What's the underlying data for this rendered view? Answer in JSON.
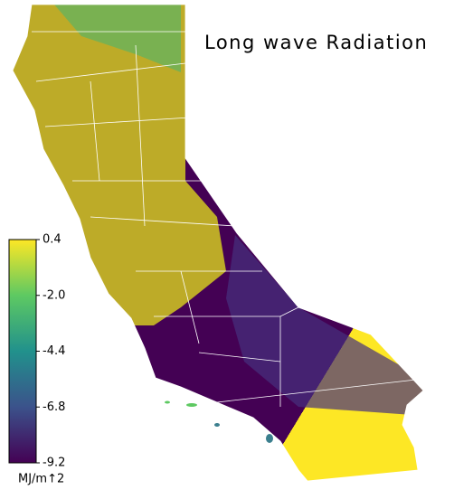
{
  "title": "Long wave Radiation",
  "colorbar": {
    "label": "MJ/m↑2",
    "lim": [
      -9.2,
      0.4
    ],
    "ticks": [
      0.4,
      {
        "value": -2,
        "label": "-2.0"
      },
      -4.4,
      -6.8,
      -9.2
    ],
    "colormap": [
      "#440154",
      "#3b528b",
      "#21918c",
      "#5ec962",
      "#fde725"
    ]
  }
}
